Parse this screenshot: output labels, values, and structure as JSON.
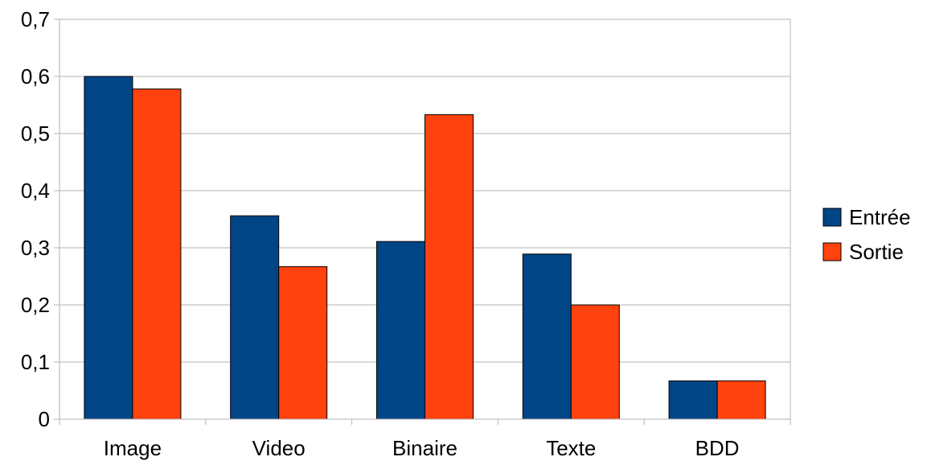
{
  "chart_data": {
    "type": "bar",
    "categories": [
      "Image",
      "Video",
      "Binaire",
      "Texte",
      "BDD"
    ],
    "series": [
      {
        "name": "Entrée",
        "values": [
          0.6,
          0.356,
          0.311,
          0.289,
          0.067
        ],
        "color": "#004586"
      },
      {
        "name": "Sortie",
        "values": [
          0.578,
          0.267,
          0.533,
          0.2,
          0.067
        ],
        "color": "#ff420e"
      }
    ],
    "y_ticks": [
      "0",
      "0,1",
      "0,2",
      "0,3",
      "0,4",
      "0,5",
      "0,6",
      "0,7"
    ],
    "ylim": [
      0,
      0.7
    ],
    "grid": true,
    "legend_position": "right",
    "gridline_color": "#b3b3b3",
    "axis_color": "#b3b3b3"
  }
}
